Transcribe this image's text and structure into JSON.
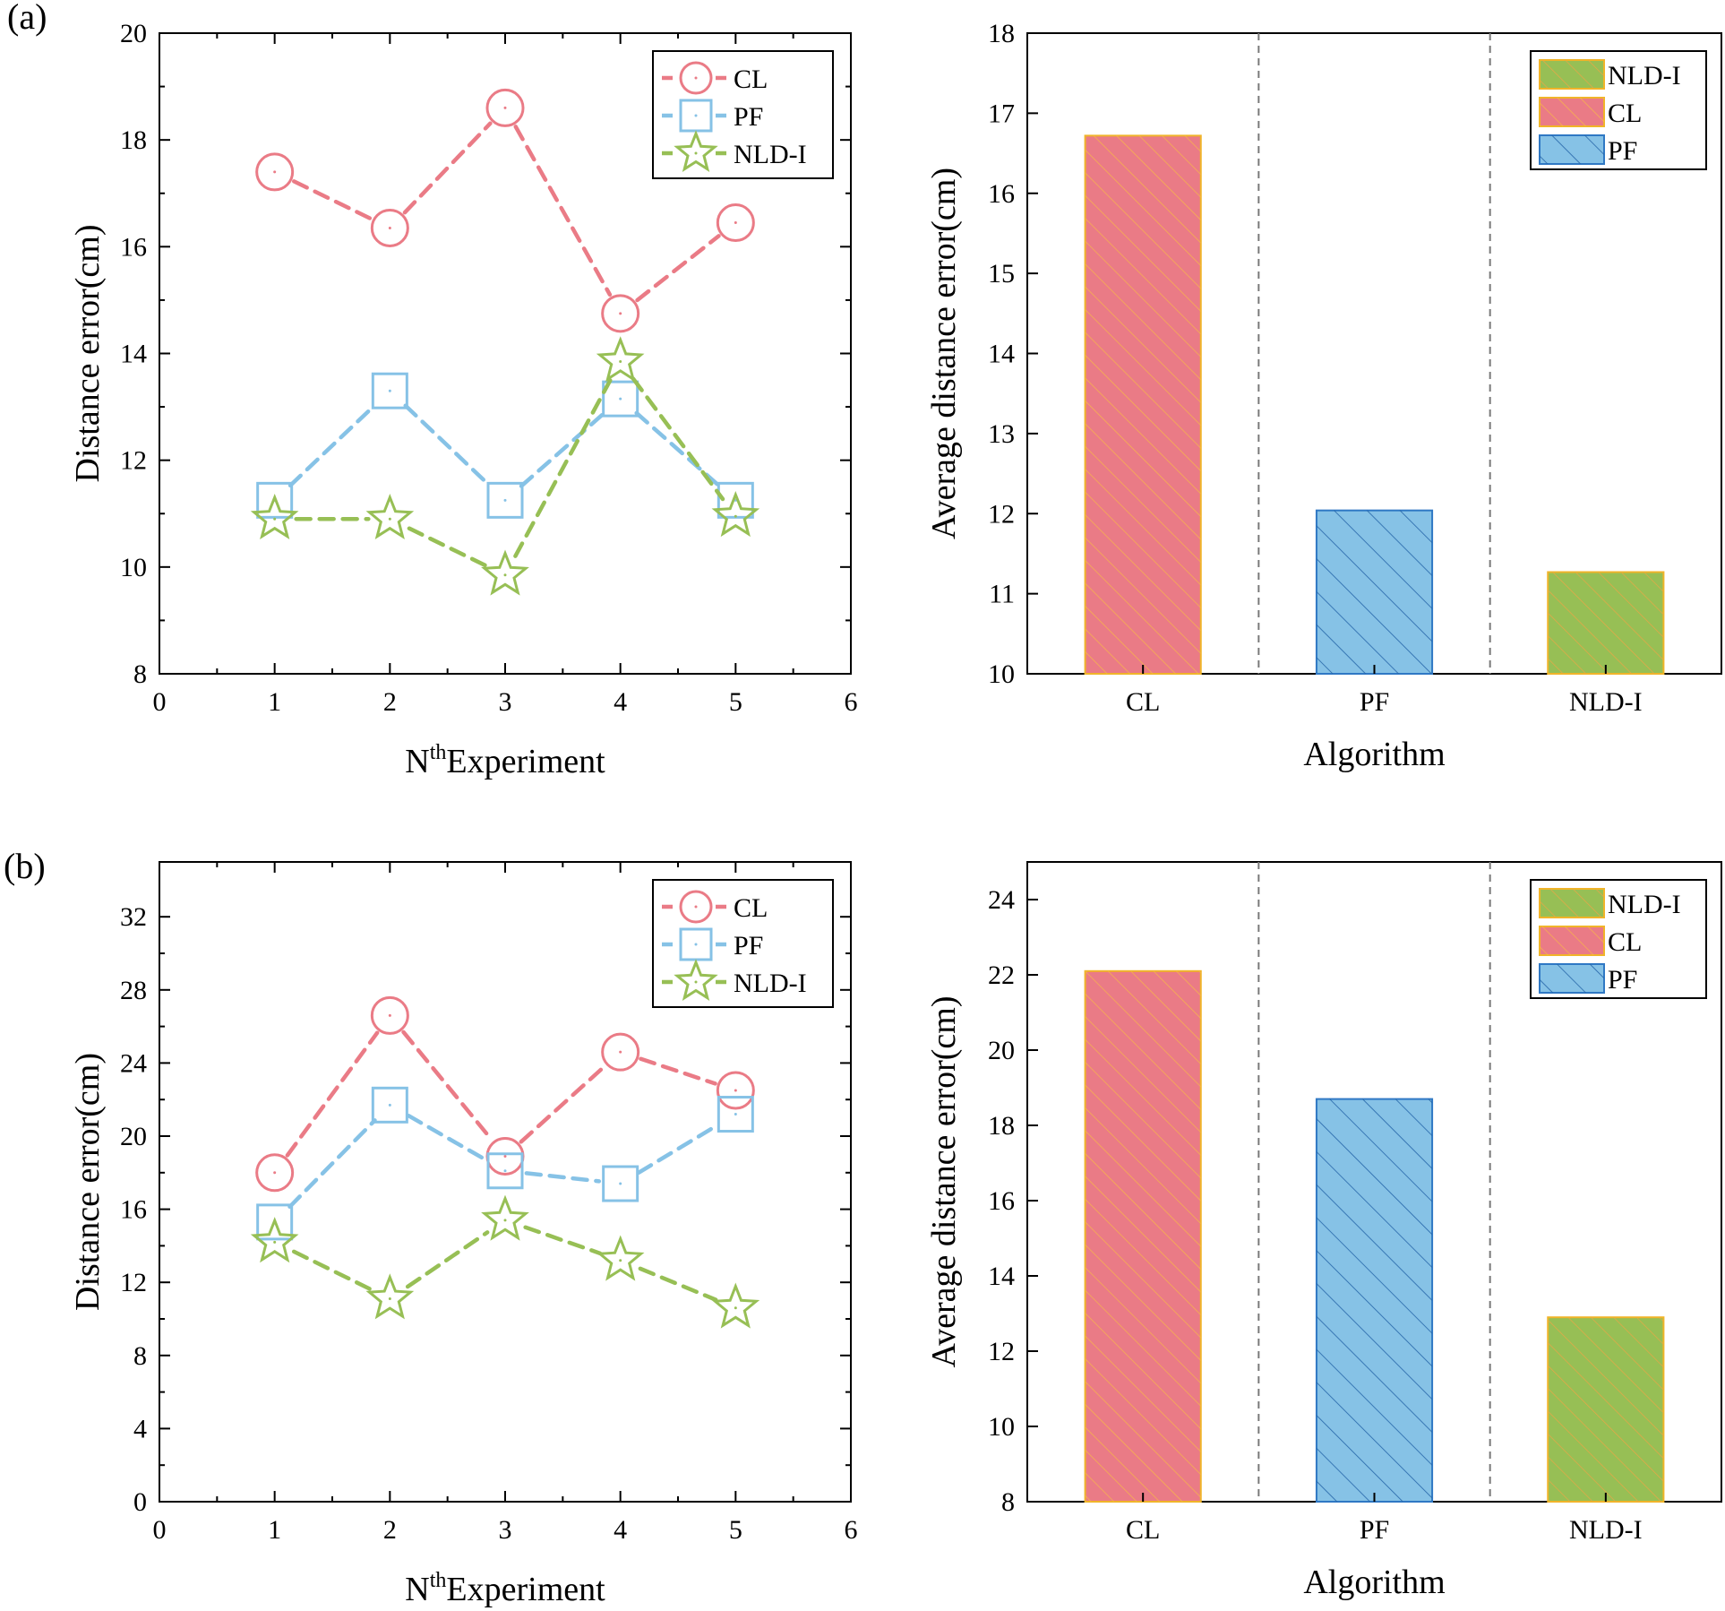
{
  "colors": {
    "CL": "#ea7b86",
    "PF": "#86c2e6",
    "NLD-I": "#97bf55",
    "bar_edge_CL": "#f0b429",
    "bar_edge_PF": "#2f78c4",
    "bar_edge_NLD-I": "#f0b429",
    "hatch_CL": "#f6b54a",
    "hatch_PF": "#2565a8",
    "hatch_NLD-I": "#e9a646",
    "separator": "#7a7a7a"
  },
  "chart_data": [
    {
      "id": "a-line",
      "panel_label": "(a)",
      "type": "line",
      "xlabel_main": "N",
      "xlabel_sup": "th",
      "xlabel_rest": "Experiment",
      "ylabel": "Distance error(cm)",
      "xlim": [
        0,
        6
      ],
      "ylim": [
        8,
        20
      ],
      "xticks": [
        0,
        1,
        2,
        3,
        4,
        5,
        6
      ],
      "yticks": [
        8,
        10,
        12,
        14,
        16,
        18,
        20
      ],
      "x": [
        1,
        2,
        3,
        4,
        5
      ],
      "series": [
        {
          "name": "CL",
          "marker": "circle",
          "values": [
            17.4,
            16.35,
            18.6,
            14.75,
            16.45
          ]
        },
        {
          "name": "PF",
          "marker": "square",
          "values": [
            11.25,
            13.3,
            11.25,
            13.15,
            11.25
          ]
        },
        {
          "name": "NLD-I",
          "marker": "star",
          "values": [
            10.9,
            10.9,
            9.85,
            13.85,
            10.95
          ]
        }
      ],
      "legend": [
        "CL",
        "PF",
        "NLD-I"
      ],
      "legend_position": "top-right"
    },
    {
      "id": "a-bar",
      "type": "bar",
      "xlabel": "Algorithm",
      "ylabel": "Average distance error(cm)",
      "ylim": [
        10,
        18
      ],
      "yticks": [
        10,
        11,
        12,
        13,
        14,
        15,
        16,
        17,
        18
      ],
      "categories": [
        "CL",
        "PF",
        "NLD-I"
      ],
      "values": [
        16.72,
        12.04,
        11.27
      ],
      "legend": [
        "NLD-I",
        "CL",
        "PF"
      ],
      "legend_position": "top-right"
    },
    {
      "id": "b-line",
      "panel_label": "(b)",
      "type": "line",
      "xlabel_main": "N",
      "xlabel_sup": "th",
      "xlabel_rest": "Experiment",
      "ylabel": "Distance error(cm)",
      "xlim": [
        0,
        6
      ],
      "ylim": [
        0,
        35
      ],
      "xticks": [
        0,
        1,
        2,
        3,
        4,
        5,
        6
      ],
      "yticks": [
        0,
        4,
        8,
        12,
        16,
        20,
        24,
        28,
        32
      ],
      "x": [
        1,
        2,
        3,
        4,
        5
      ],
      "series": [
        {
          "name": "CL",
          "marker": "circle",
          "values": [
            18.0,
            26.6,
            18.9,
            24.6,
            22.5
          ]
        },
        {
          "name": "PF",
          "marker": "square",
          "values": [
            15.3,
            21.7,
            18.1,
            17.4,
            21.2
          ]
        },
        {
          "name": "NLD-I",
          "marker": "star",
          "values": [
            14.2,
            11.1,
            15.4,
            13.2,
            10.6
          ]
        }
      ],
      "legend": [
        "CL",
        "PF",
        "NLD-I"
      ],
      "legend_position": "top-right"
    },
    {
      "id": "b-bar",
      "type": "bar",
      "xlabel": "Algorithm",
      "ylabel": "Average distance error(cm)",
      "ylim": [
        8,
        25
      ],
      "yticks": [
        8,
        10,
        12,
        14,
        16,
        18,
        20,
        22,
        24
      ],
      "categories": [
        "CL",
        "PF",
        "NLD-I"
      ],
      "values": [
        22.1,
        18.7,
        12.9
      ],
      "legend": [
        "NLD-I",
        "CL",
        "PF"
      ],
      "legend_position": "top-right"
    }
  ]
}
